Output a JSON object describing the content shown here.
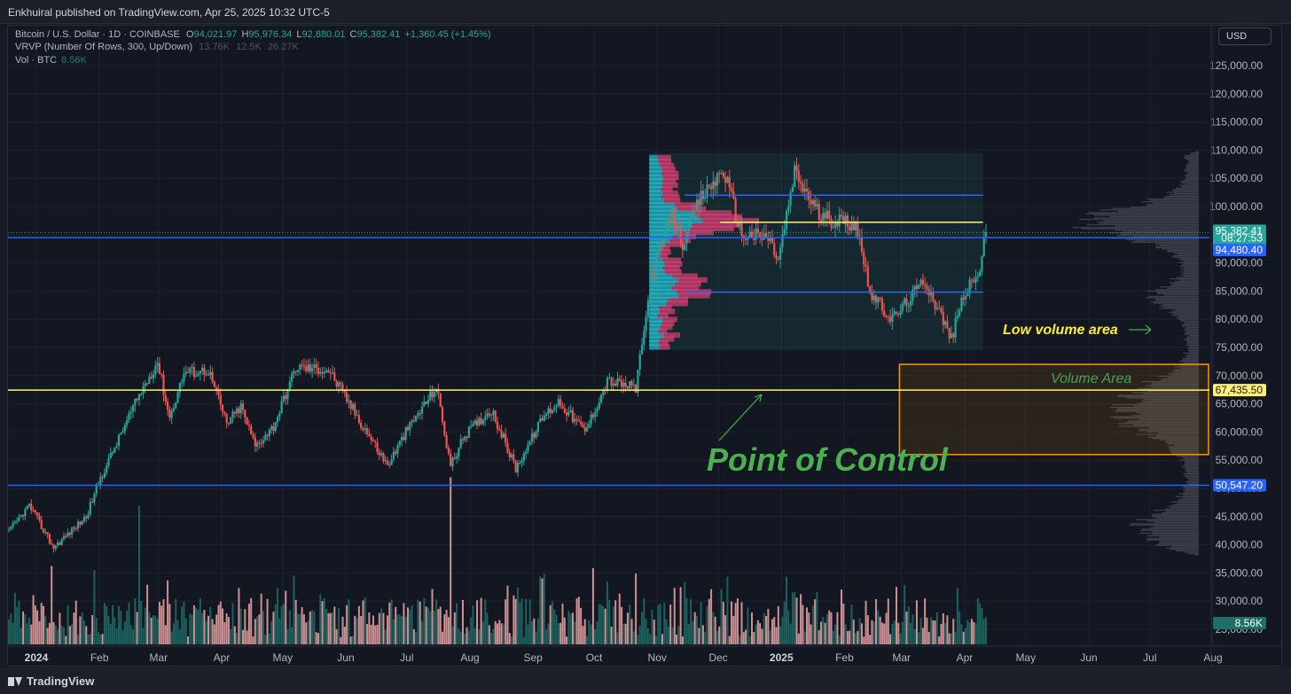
{
  "publisher": "Enkhuiral published on TradingView.com, Apr 25, 2025 10:32 UTC-5",
  "footer": {
    "brand": "TradingView",
    "logo_icon": "tradingview-logo-icon"
  },
  "currency_button": "USD",
  "legend": {
    "symbol": "Bitcoin / U.S. Dollar · 1D · COINBASE",
    "open_label": "O",
    "open": "94,021.97",
    "high_label": "H",
    "high": "95,976.34",
    "low_label": "L",
    "low": "92,880.01",
    "close_label": "C",
    "close": "95,382.41",
    "change": "+1,360.45 (+1.45%)",
    "vrvp_label": "VRVP (Number Of Rows, 300, Up/Down)",
    "vrvp_v1": "13.76K",
    "vrvp_v2": "12.5K",
    "vrvp_v3": "26.27K",
    "vol_label": "Vol · BTC",
    "vol_value": "8.56K"
  },
  "colors": {
    "up": "#26a69a",
    "down": "#ef5350",
    "vol_up": "#1e6f68",
    "vol_down": "#f0a6a6",
    "blue_line": "#2962ff",
    "yellow_line": "#fff176",
    "annotation_green": "#4caf50",
    "annotation_yellow": "#ffeb3b",
    "volume_area_box": "#ff9800"
  },
  "chart_data": {
    "type": "candlestick",
    "y_axis_ticks": [
      "125,000.00",
      "120,000.00",
      "115,000.00",
      "110,000.00",
      "105,000.00",
      "100,000.00",
      "95,000.00",
      "90,000.00",
      "85,000.00",
      "80,000.00",
      "75,000.00",
      "70,000.00",
      "65,000.00",
      "60,000.00",
      "55,000.00",
      "50,000.00",
      "45,000.00",
      "40,000.00",
      "35,000.00",
      "30,000.00",
      "25,000.00"
    ],
    "x_axis_ticks": [
      "2024",
      "Feb",
      "Mar",
      "Apr",
      "May",
      "Jun",
      "Jul",
      "Aug",
      "Sep",
      "Oct",
      "Nov",
      "Dec",
      "2025",
      "Feb",
      "Mar",
      "Apr",
      "May",
      "Jun",
      "Jul",
      "Aug"
    ],
    "ylim": [
      25000,
      128000
    ],
    "price_path": [
      {
        "date": "2024-01-01",
        "close": 42300
      },
      {
        "date": "2024-01-11",
        "close": 47000
      },
      {
        "date": "2024-01-23",
        "close": 39500
      },
      {
        "date": "2024-02-08",
        "close": 45000
      },
      {
        "date": "2024-02-15",
        "close": 51800
      },
      {
        "date": "2024-02-28",
        "close": 62000
      },
      {
        "date": "2024-03-05",
        "close": 66500
      },
      {
        "date": "2024-03-14",
        "close": 72500
      },
      {
        "date": "2024-03-20",
        "close": 62500
      },
      {
        "date": "2024-03-27",
        "close": 70500
      },
      {
        "date": "2024-04-08",
        "close": 71000
      },
      {
        "date": "2024-04-17",
        "close": 61500
      },
      {
        "date": "2024-04-24",
        "close": 64500
      },
      {
        "date": "2024-05-01",
        "close": 57500
      },
      {
        "date": "2024-05-10",
        "close": 61000
      },
      {
        "date": "2024-05-21",
        "close": 71500
      },
      {
        "date": "2024-06-06",
        "close": 71000
      },
      {
        "date": "2024-06-24",
        "close": 60500
      },
      {
        "date": "2024-07-05",
        "close": 54000
      },
      {
        "date": "2024-07-14",
        "close": 60000
      },
      {
        "date": "2024-07-29",
        "close": 68000
      },
      {
        "date": "2024-08-05",
        "close": 54000
      },
      {
        "date": "2024-08-12",
        "close": 59500
      },
      {
        "date": "2024-08-25",
        "close": 64000
      },
      {
        "date": "2024-09-06",
        "close": 53500
      },
      {
        "date": "2024-09-19",
        "close": 62500
      },
      {
        "date": "2024-09-27",
        "close": 65500
      },
      {
        "date": "2024-10-10",
        "close": 60000
      },
      {
        "date": "2024-10-21",
        "close": 69000
      },
      {
        "date": "2024-11-04",
        "close": 67800
      },
      {
        "date": "2024-11-12",
        "close": 88000
      },
      {
        "date": "2024-11-22",
        "close": 98500
      },
      {
        "date": "2024-11-27",
        "close": 93500
      },
      {
        "date": "2024-12-05",
        "close": 101000
      },
      {
        "date": "2024-12-17",
        "close": 106500
      },
      {
        "date": "2024-12-26",
        "close": 95000
      },
      {
        "date": "2025-01-08",
        "close": 94500
      },
      {
        "date": "2025-01-13",
        "close": 90500
      },
      {
        "date": "2025-01-21",
        "close": 106000
      },
      {
        "date": "2025-02-03",
        "close": 98000
      },
      {
        "date": "2025-02-20",
        "close": 97000
      },
      {
        "date": "2025-02-28",
        "close": 84000
      },
      {
        "date": "2025-03-10",
        "close": 80000
      },
      {
        "date": "2025-03-26",
        "close": 87000
      },
      {
        "date": "2025-04-08",
        "close": 76500
      },
      {
        "date": "2025-04-14",
        "close": 84500
      },
      {
        "date": "2025-04-21",
        "close": 87500
      },
      {
        "date": "2025-04-25",
        "close": 95382.41
      }
    ],
    "horizontal_lines": [
      {
        "price": 102000,
        "color": "blue"
      },
      {
        "price": 97200,
        "color": "yellow"
      },
      {
        "price": 94480.4,
        "color": "blue",
        "label": "94,480.40"
      },
      {
        "price": 84800,
        "color": "blue"
      },
      {
        "price": 67435.5,
        "color": "yellow",
        "label": "67,435.50"
      },
      {
        "price": 50547.2,
        "color": "blue",
        "label": "50,547.20"
      }
    ],
    "price_labels": [
      {
        "value": "95,382.41",
        "sub": "08:27:53",
        "color": "#26a69a"
      },
      {
        "value": "8.56K",
        "color": "#1e6f68"
      }
    ],
    "annotations": [
      {
        "text": "Point of Control",
        "color": "green"
      },
      {
        "text": "Low volume area",
        "color": "yellow"
      },
      {
        "text": "Volume Area",
        "color": "green"
      }
    ],
    "volume_area_range": [
      56000,
      72000
    ],
    "vrvp_range": [
      74500,
      109500
    ],
    "volume_spikes": [
      {
        "date": "2024-03-05",
        "height": 0.68
      },
      {
        "date": "2024-08-05",
        "height": 0.82
      }
    ]
  }
}
